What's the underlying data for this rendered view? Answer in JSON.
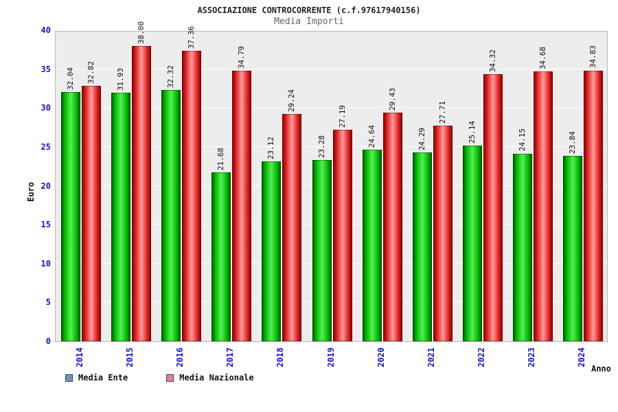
{
  "header": {
    "title": "ASSOCIAZIONE CONTROCORRENTE (c.f.97617940156)",
    "subtitle": "Media Importi"
  },
  "axes": {
    "y_label": "Euro",
    "x_label": "Anno",
    "y_ticks": [
      0,
      5,
      10,
      15,
      20,
      25,
      30,
      35,
      40
    ]
  },
  "legend": {
    "items": [
      {
        "label": "Media Ente",
        "swatch_color": "#6e93c0"
      },
      {
        "label": "Media Nazionale",
        "swatch_color": "#df8498"
      }
    ]
  },
  "chart_data": {
    "type": "bar",
    "title": "ASSOCIAZIONE CONTROCORRENTE (c.f.97617940156)",
    "subtitle": "Media Importi",
    "xlabel": "Anno",
    "ylabel": "Euro",
    "ylim": [
      0,
      40
    ],
    "grid": true,
    "legend_position": "bottom-left",
    "categories": [
      "2014",
      "2015",
      "2016",
      "2017",
      "2018",
      "2019",
      "2020",
      "2021",
      "2022",
      "2023",
      "2024"
    ],
    "series": [
      {
        "name": "Media Ente",
        "color_edge": "#006600",
        "color_mid": "#55ee55",
        "color_inner": "#00bb00",
        "values": [
          32.04,
          31.93,
          32.32,
          21.68,
          23.12,
          23.28,
          24.64,
          24.29,
          25.14,
          24.15,
          23.84
        ]
      },
      {
        "name": "Media Nazionale",
        "color_edge": "#990000",
        "color_mid": "#ff9b9b",
        "color_inner": "#dd2222",
        "values": [
          32.82,
          38.0,
          37.36,
          34.79,
          29.24,
          27.19,
          29.43,
          27.71,
          34.32,
          34.68,
          34.83
        ]
      }
    ]
  }
}
